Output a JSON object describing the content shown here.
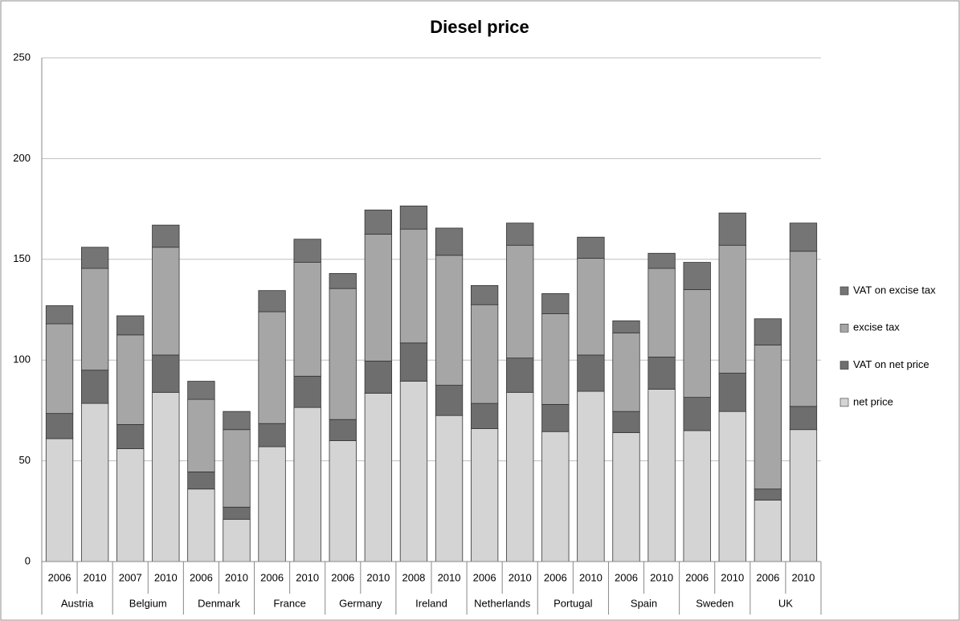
{
  "chart_data": {
    "type": "stacked_bar",
    "title": "Diesel price",
    "categories": [
      "2006",
      "2010",
      "2007",
      "2010",
      "2006",
      "2010",
      "2006",
      "2010",
      "2006",
      "2010",
      "2008",
      "2010",
      "2006",
      "2010",
      "2006",
      "2010",
      "2006",
      "2010",
      "2006",
      "2010",
      "2006",
      "2010"
    ],
    "groups": [
      "Austria",
      "Belgium",
      "Denmark",
      "France",
      "Germany",
      "Ireland",
      "Netherlands",
      "Portugal",
      "Spain",
      "Sweden",
      "UK"
    ],
    "series": [
      {
        "name": "net price",
        "color": "#d4d4d4",
        "values": [
          61,
          78.5,
          56,
          84,
          36,
          21,
          57,
          76.5,
          60,
          83.5,
          89.5,
          72.5,
          66,
          84,
          64.5,
          84.5,
          64,
          85.5,
          65,
          74.5,
          30.5,
          65.5
        ]
      },
      {
        "name": "VAT on net price",
        "color": "#6e6e6e",
        "values": [
          12.5,
          16.5,
          12,
          18.5,
          8.5,
          6,
          11.5,
          15.5,
          10.5,
          16,
          19,
          15,
          12.5,
          17,
          13.5,
          18,
          10.5,
          16,
          16.5,
          19,
          5.5,
          11.5
        ]
      },
      {
        "name": "excise tax",
        "color": "#a6a6a6",
        "values": [
          44.5,
          50.5,
          44.5,
          53.5,
          36,
          38.5,
          55.5,
          56.5,
          65,
          63,
          56.5,
          64.5,
          49,
          56,
          45,
          48,
          39,
          44,
          53.5,
          63.5,
          71.5,
          77
        ]
      },
      {
        "name": "VAT on excise tax",
        "color": "#757575",
        "values": [
          9,
          10.5,
          9.5,
          11,
          9,
          9,
          10.5,
          11.5,
          7.5,
          12,
          11.5,
          13.5,
          9.5,
          11,
          10,
          10.5,
          6,
          7.5,
          13.5,
          16,
          13,
          14
        ]
      }
    ],
    "ylim": [
      0,
      250
    ],
    "yticks": [
      0,
      50,
      100,
      150,
      200,
      250
    ],
    "grid": true,
    "legend": "right"
  }
}
